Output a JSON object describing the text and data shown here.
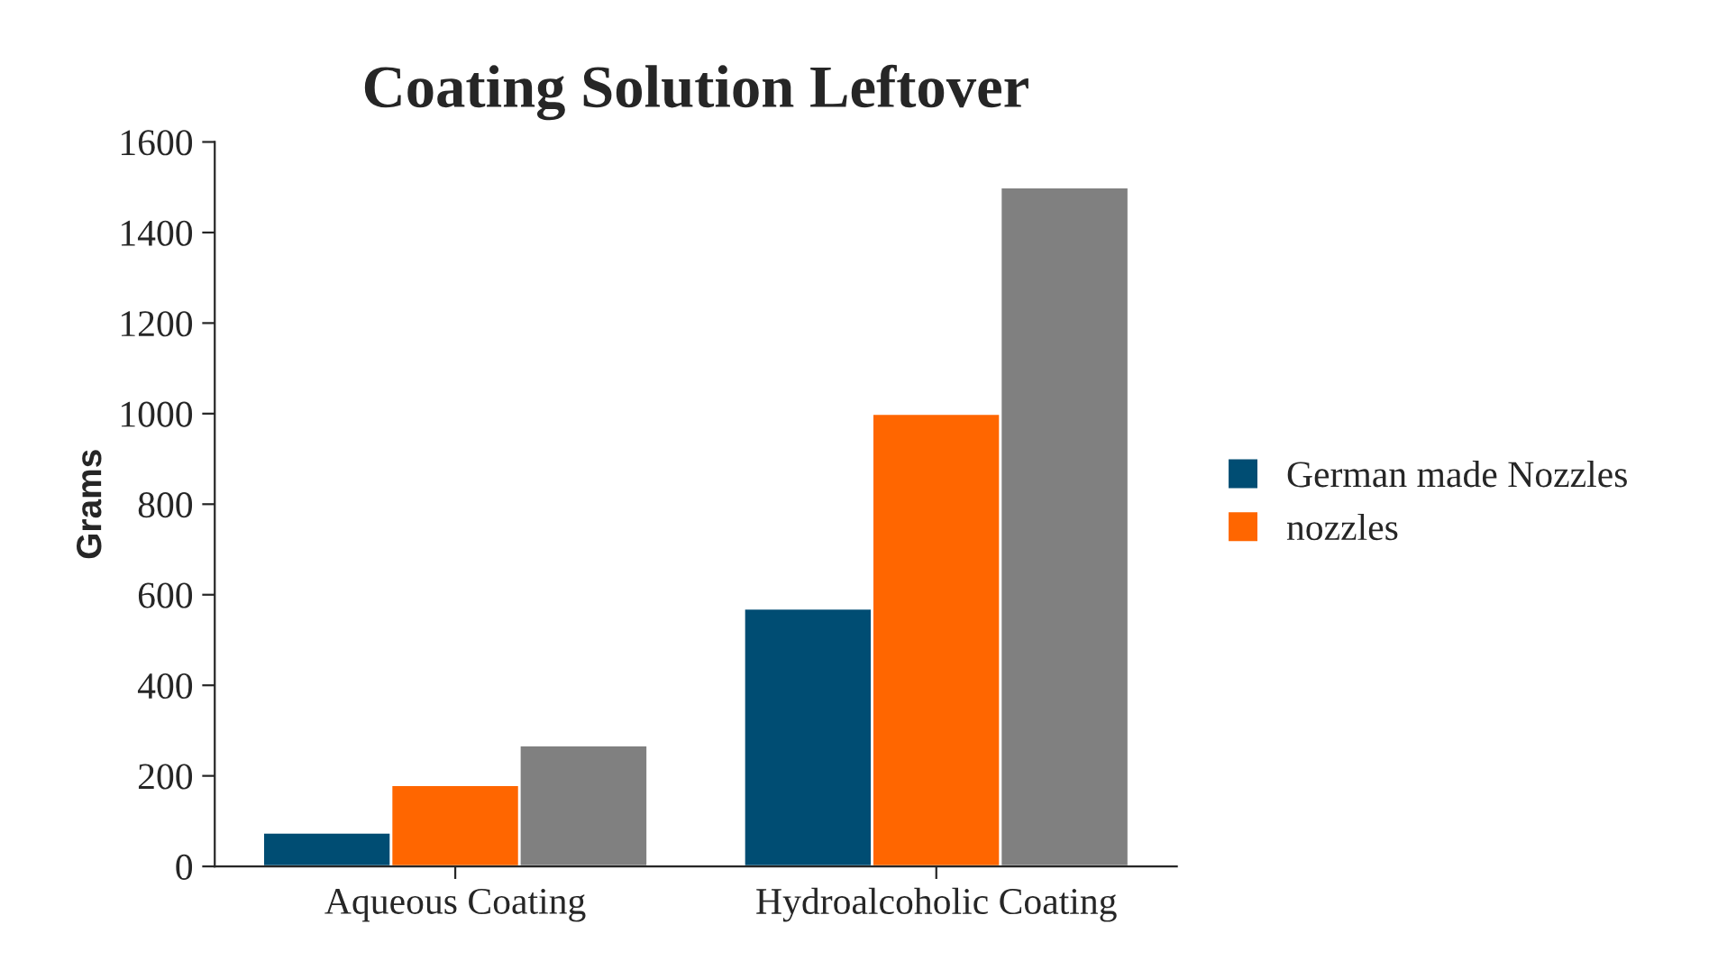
{
  "chart_data": {
    "type": "bar",
    "title": "Coating Solution Leftover",
    "ylabel": "Grams",
    "categories": [
      "Aqueous Coating",
      "Hydroalcoholic Coating"
    ],
    "series": [
      {
        "name": "German made Nozzles",
        "color": "#004d73",
        "values": [
          75,
          570
        ]
      },
      {
        "name": "nozzles",
        "color": "#ff6600",
        "values": [
          180,
          1000
        ]
      },
      {
        "color": "#808080",
        "values": [
          268,
          1500
        ]
      }
    ],
    "ylim": [
      0,
      1600
    ],
    "yticks": [
      0,
      200,
      400,
      600,
      800,
      1000,
      1200,
      1400,
      1600
    ],
    "grid": false,
    "legend": "right"
  }
}
